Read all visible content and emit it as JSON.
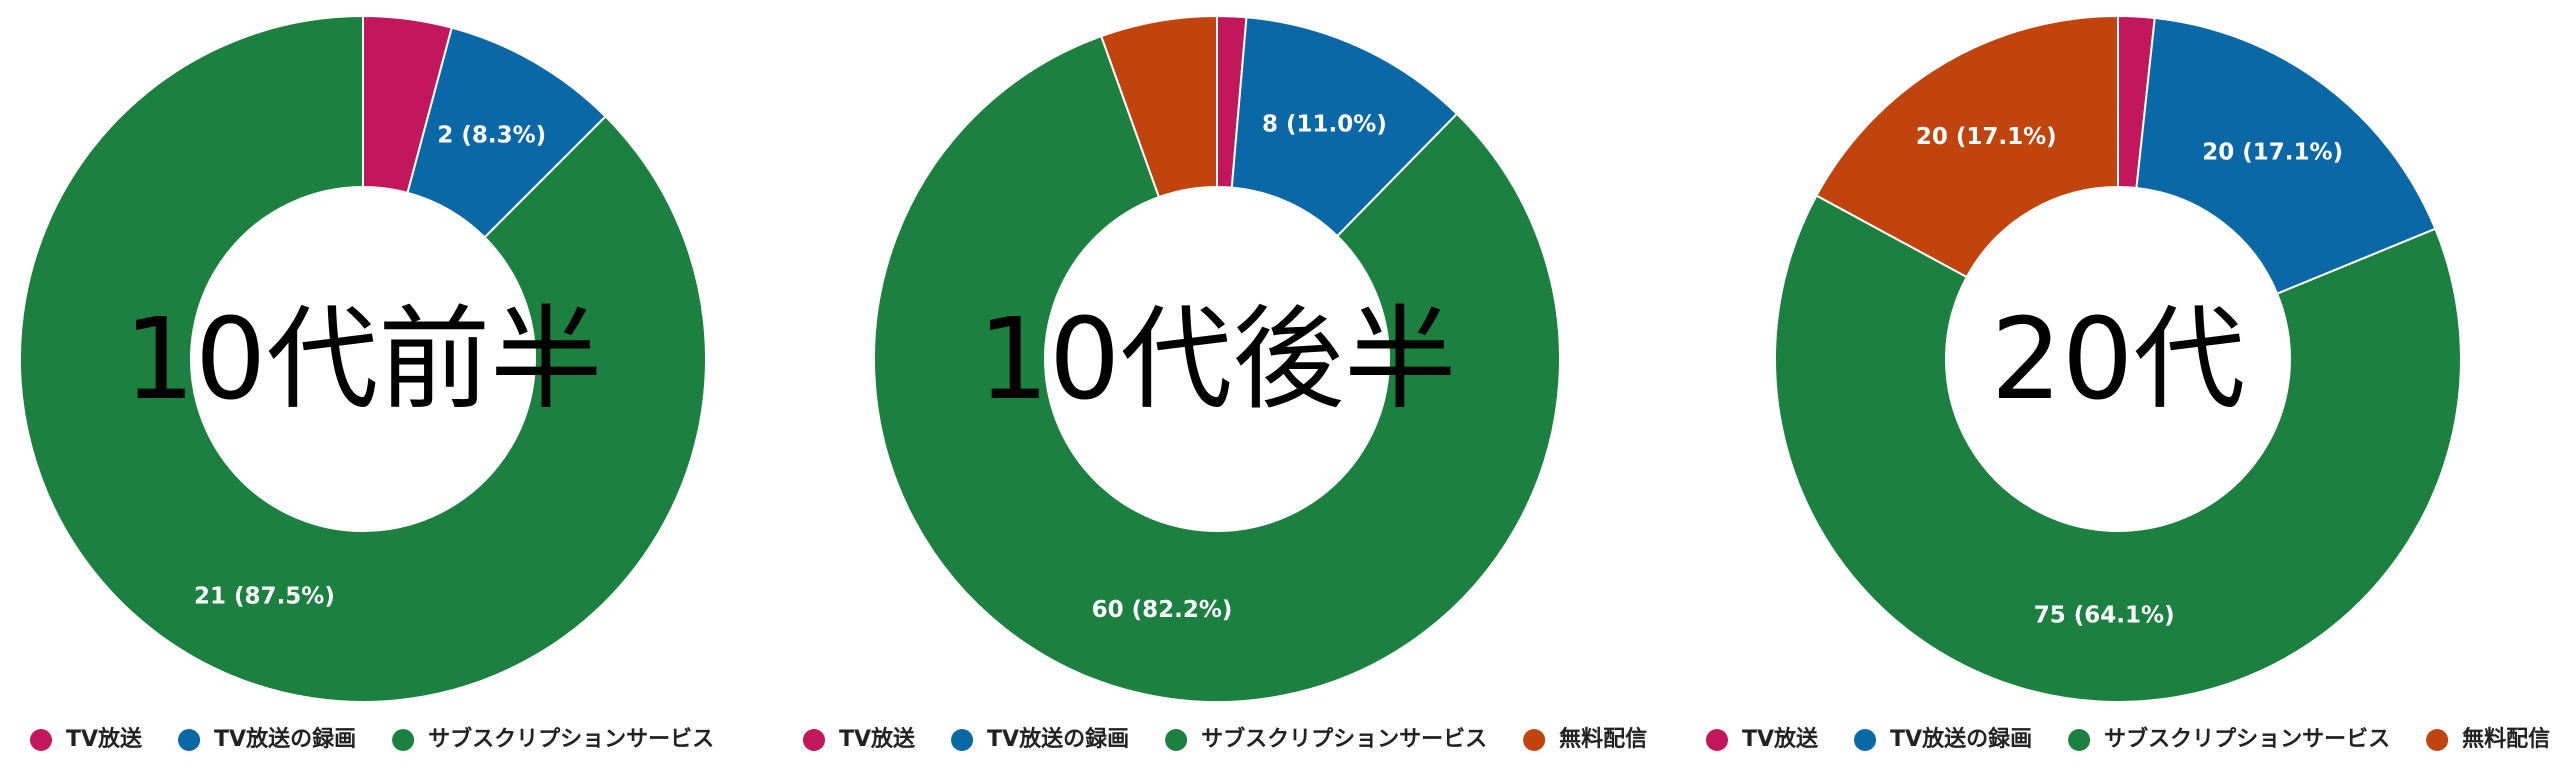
{
  "chart_data": [
    {
      "type": "donut",
      "title": "10代前半",
      "categories": [
        "TV放送",
        "TV放送の録画",
        "サブスクリプションサービス"
      ],
      "values": [
        1,
        2,
        21
      ],
      "value_labels": [
        null,
        "2 (8.3%)",
        "21 (87.5%)"
      ],
      "colors": [
        "#c2185b",
        "#0b68a6",
        "#1b8040"
      ]
    },
    {
      "type": "donut",
      "title": "10代後半",
      "categories": [
        "TV放送",
        "TV放送の録画",
        "サブスクリプションサービス",
        "無料配信"
      ],
      "values": [
        1,
        8,
        60,
        4
      ],
      "value_labels": [
        null,
        "8 (11.0%)",
        "60 (82.2%)",
        null
      ],
      "colors": [
        "#c2185b",
        "#0b68a6",
        "#1b8040",
        "#c1440e"
      ]
    },
    {
      "type": "donut",
      "title": "20代",
      "categories": [
        "TV放送",
        "TV放送の録画",
        "サブスクリプションサービス",
        "無料配信"
      ],
      "values": [
        2,
        20,
        75,
        20
      ],
      "value_labels": [
        null,
        "20 (17.1%)",
        "75 (64.1%)",
        "20 (17.1%)"
      ],
      "colors": [
        "#c2185b",
        "#0b68a6",
        "#1b8040",
        "#c1440e"
      ]
    }
  ]
}
